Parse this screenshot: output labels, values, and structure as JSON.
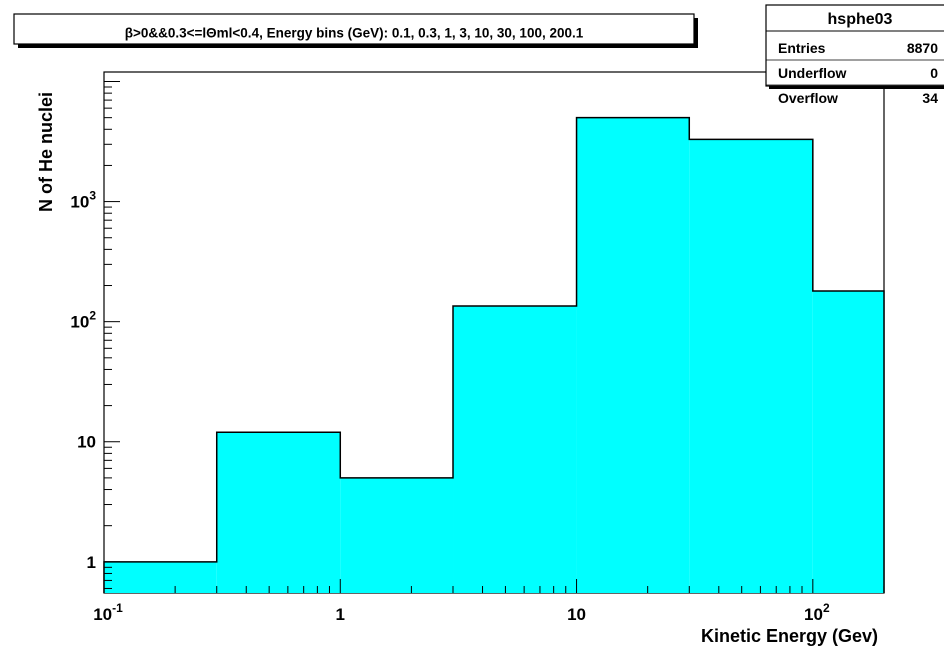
{
  "chart_data": {
    "type": "bar",
    "title": "β>0&&0.3<=lΘml<0.4, Energy bins (GeV): 0.1, 0.3, 1, 3, 10, 30, 100, 200.1",
    "xlabel": "Kinetic Energy (Gev)",
    "ylabel": "N of He nuclei",
    "x_scale": "log",
    "y_scale": "log",
    "bin_edges": [
      0.1,
      0.3,
      1,
      3,
      10,
      30,
      100,
      200.1
    ],
    "values": [
      1,
      12,
      5,
      135,
      5000,
      3300,
      180
    ],
    "xlim": [
      0.1,
      200.1
    ],
    "ylim": [
      0.55,
      12000
    ],
    "x_ticks": [
      {
        "value": 0.1,
        "base": "10",
        "exp": "-1"
      },
      {
        "value": 1,
        "base": "1",
        "exp": ""
      },
      {
        "value": 10,
        "base": "10",
        "exp": ""
      },
      {
        "value": 100,
        "base": "10",
        "exp": "2"
      }
    ],
    "y_ticks": [
      {
        "value": 1,
        "base": "1",
        "exp": ""
      },
      {
        "value": 10,
        "base": "10",
        "exp": ""
      },
      {
        "value": 100,
        "base": "10",
        "exp": "2"
      },
      {
        "value": 1000,
        "base": "10",
        "exp": "3"
      }
    ],
    "fill_color": "#00ffff",
    "line_color": "#000000",
    "grid": false,
    "stats_box": {
      "name": "hsphe03",
      "rows": [
        {
          "label": "Entries",
          "value": "8870"
        },
        {
          "label": "Underflow",
          "value": "0"
        },
        {
          "label": "Overflow",
          "value": "34"
        }
      ],
      "placement": "top-right"
    }
  }
}
